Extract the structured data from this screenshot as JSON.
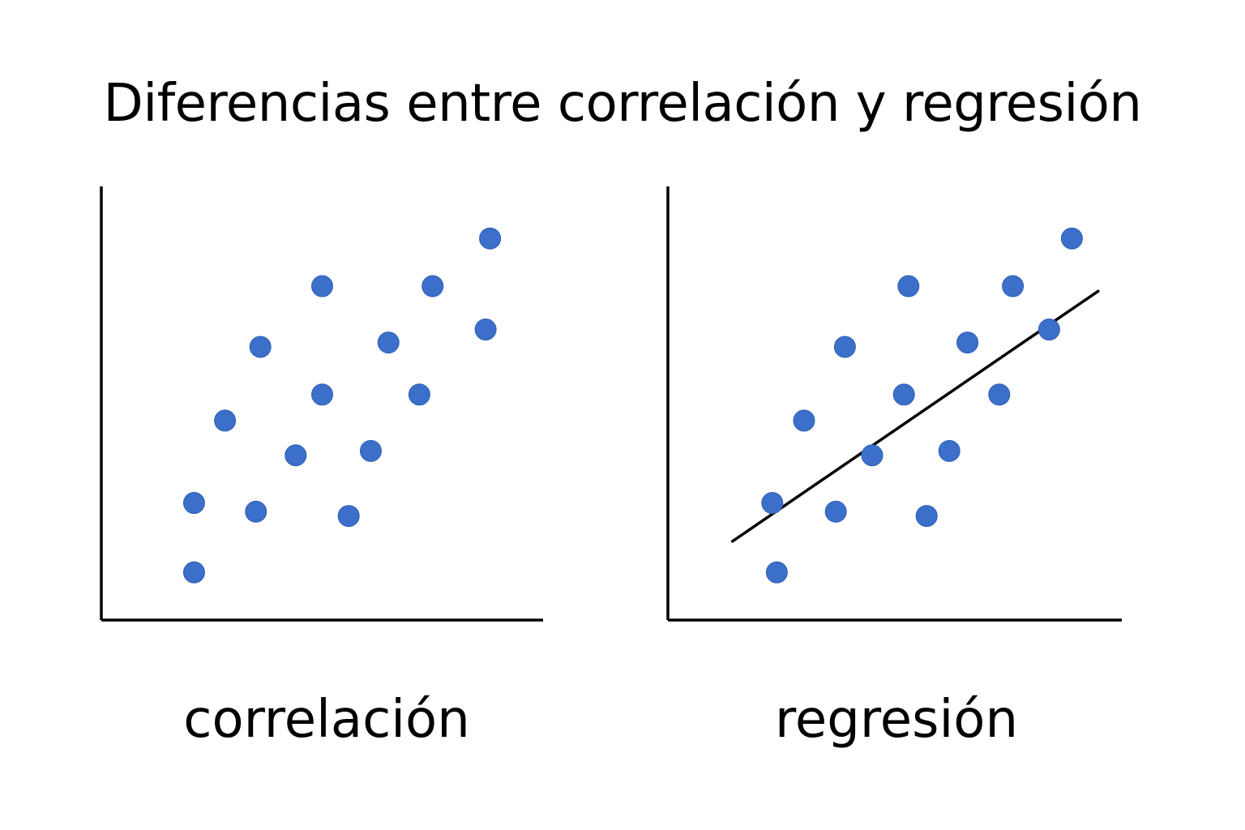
{
  "page": {
    "title": "Diferencias entre correlación y regresión"
  },
  "colors": {
    "point": "#3b6fca",
    "point_stroke": "#2f5fb5",
    "axis": "#000000",
    "line": "#000000"
  },
  "chart_data": [
    {
      "type": "scatter",
      "caption": "correlación",
      "xlim": [
        0,
        10
      ],
      "ylim": [
        0,
        10
      ],
      "grid": false,
      "axes": "left-bottom",
      "points": [
        {
          "x": 2.1,
          "y": 1.1
        },
        {
          "x": 2.1,
          "y": 2.7
        },
        {
          "x": 2.8,
          "y": 4.6
        },
        {
          "x": 3.5,
          "y": 2.5
        },
        {
          "x": 3.6,
          "y": 6.3
        },
        {
          "x": 4.4,
          "y": 3.8
        },
        {
          "x": 5.0,
          "y": 7.7
        },
        {
          "x": 5.0,
          "y": 5.2
        },
        {
          "x": 5.6,
          "y": 2.4
        },
        {
          "x": 6.1,
          "y": 3.9
        },
        {
          "x": 6.5,
          "y": 6.4
        },
        {
          "x": 7.2,
          "y": 5.2
        },
        {
          "x": 7.5,
          "y": 7.7
        },
        {
          "x": 8.7,
          "y": 6.7
        },
        {
          "x": 8.8,
          "y": 8.8
        }
      ]
    },
    {
      "type": "scatter",
      "caption": "regresión",
      "xlim": [
        0,
        10
      ],
      "ylim": [
        0,
        10
      ],
      "grid": false,
      "axes": "left-bottom",
      "regression_line": {
        "x1": 1.4,
        "y1": 1.8,
        "x2": 9.5,
        "y2": 7.6
      },
      "points": [
        {
          "x": 2.4,
          "y": 1.1
        },
        {
          "x": 2.3,
          "y": 2.7
        },
        {
          "x": 3.0,
          "y": 4.6
        },
        {
          "x": 3.7,
          "y": 2.5
        },
        {
          "x": 3.9,
          "y": 6.3
        },
        {
          "x": 4.5,
          "y": 3.8
        },
        {
          "x": 5.3,
          "y": 7.7
        },
        {
          "x": 5.2,
          "y": 5.2
        },
        {
          "x": 5.7,
          "y": 2.4
        },
        {
          "x": 6.2,
          "y": 3.9
        },
        {
          "x": 6.6,
          "y": 6.4
        },
        {
          "x": 7.3,
          "y": 5.2
        },
        {
          "x": 7.6,
          "y": 7.7
        },
        {
          "x": 8.4,
          "y": 6.7
        },
        {
          "x": 8.9,
          "y": 8.8
        }
      ]
    }
  ]
}
